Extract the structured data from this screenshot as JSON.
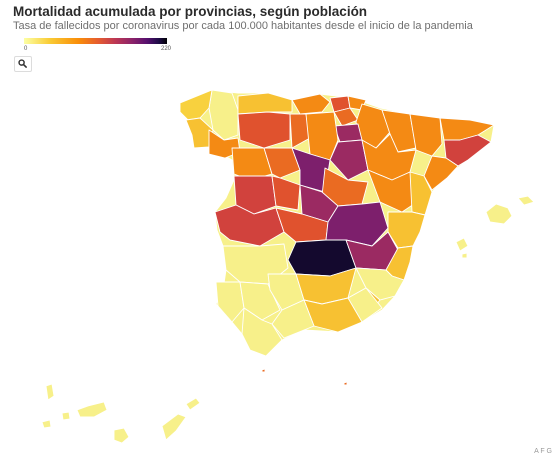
{
  "header": {
    "title": "Mortalidad acumulada por provincias, según población",
    "subtitle": "Tasa de fallecidos por coronavirus por cada 100.000 habitantes desde el inicio de la pandemia"
  },
  "legend": {
    "min_label": "0",
    "max_label": "220",
    "color_scale": [
      "#fcffa4",
      "#f9cb35",
      "#f98e09",
      "#e55c30",
      "#bc3754",
      "#8a226a",
      "#57106e",
      "#1f0c48",
      "#000004"
    ]
  },
  "controls": {
    "search_icon": "search-icon"
  },
  "footer": {
    "corner_text": "A F G"
  },
  "map": {
    "colors": {
      "pale": "#f7f08a",
      "yellow": "#f8d13e",
      "gold": "#f7c132",
      "orange": "#f48a14",
      "dark_orange": "#ea6b22",
      "red_orange": "#e0522e",
      "red": "#d1423d",
      "magenta": "#9b2a62",
      "purple": "#7d1f6c",
      "darkest": "#14092e"
    }
  }
}
